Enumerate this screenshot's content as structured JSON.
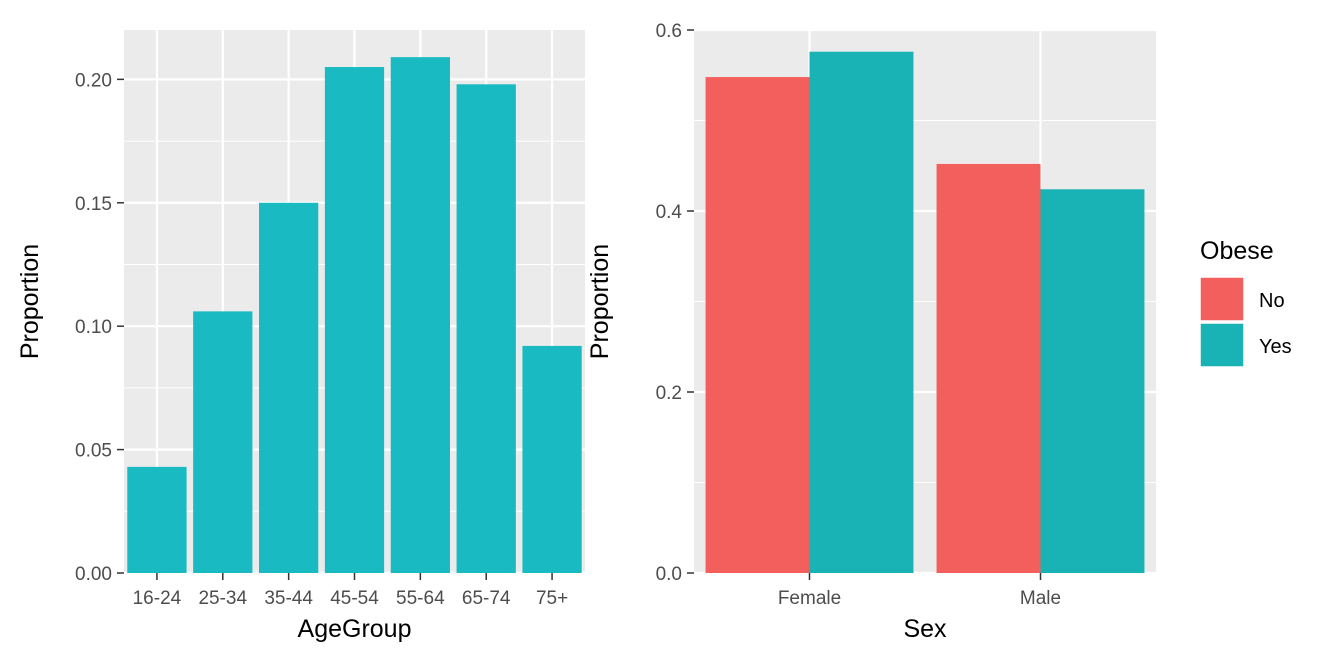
{
  "chart_data": [
    {
      "type": "bar",
      "categories": [
        "16-24",
        "25-34",
        "35-44",
        "45-54",
        "55-64",
        "65-74",
        "75+"
      ],
      "values": [
        0.043,
        0.106,
        0.15,
        0.205,
        0.209,
        0.198,
        0.092
      ],
      "xlabel": "AgeGroup",
      "ylabel": "Proportion",
      "ylim": [
        0,
        0.22
      ],
      "yticks": [
        0.0,
        0.05,
        0.1,
        0.15,
        0.2
      ],
      "ytick_labels": [
        "0.00",
        "0.05",
        "0.10",
        "0.15",
        "0.20"
      ],
      "bar_color": "#19BAC2",
      "panel_color": "#EBEBEB",
      "grid": true,
      "legend": false
    },
    {
      "type": "bar",
      "categories": [
        "Female",
        "Male"
      ],
      "series": [
        {
          "name": "No",
          "values": [
            0.548,
            0.452
          ],
          "color": "#F25F5C"
        },
        {
          "name": "Yes",
          "values": [
            0.576,
            0.424
          ],
          "color": "#19B2B5"
        }
      ],
      "xlabel": "Sex",
      "ylabel": "Proportion",
      "ylim": [
        0,
        0.6
      ],
      "yticks": [
        0.0,
        0.2,
        0.4,
        0.6
      ],
      "ytick_labels": [
        "0.0",
        "0.2",
        "0.4",
        "0.6"
      ],
      "panel_color": "#EBEBEB",
      "grid": true,
      "legend": {
        "title": "Obese",
        "position": "right"
      }
    }
  ]
}
